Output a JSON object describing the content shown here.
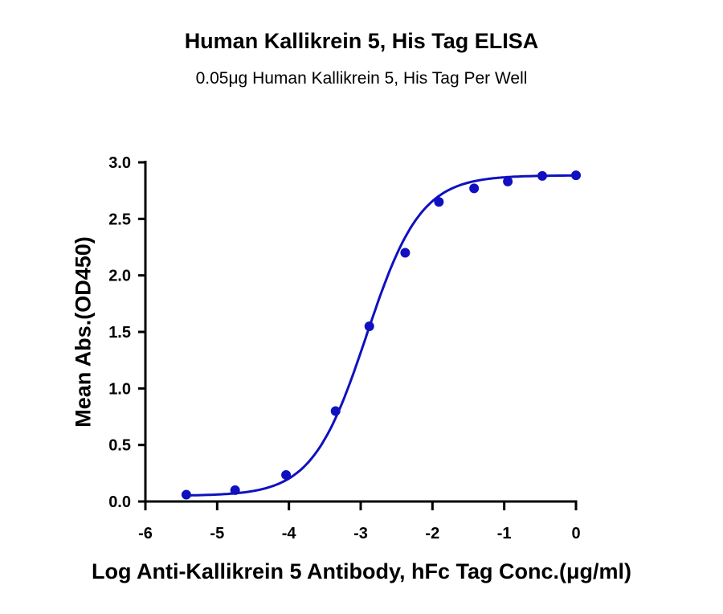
{
  "chart_data": {
    "type": "scatter",
    "title": "Human Kallikrein 5, His Tag ELISA",
    "subtitle": "0.05μg Human Kallikrein 5, His Tag Per Well",
    "xlabel": "Log Anti-Kallikrein 5 Antibody, hFc Tag Conc.(μg/ml)",
    "ylabel": "Mean Abs.(OD450)",
    "xlim": [
      -6,
      0
    ],
    "ylim": [
      0,
      3.0
    ],
    "x_ticks": [
      "-6",
      "-5",
      "-4",
      "-3",
      "-2",
      "-1",
      "0"
    ],
    "y_ticks": [
      "0.0",
      "0.5",
      "1.0",
      "1.5",
      "2.0",
      "2.5",
      "3.0"
    ],
    "grid": false,
    "fit_curve": "sigmoidal",
    "series": [
      {
        "color": "#1010c0",
        "x": [
          -5.43,
          -4.75,
          -4.04,
          -3.35,
          -2.88,
          -2.38,
          -1.91,
          -1.42,
          -0.95,
          -0.47,
          0.0
        ],
        "y": [
          0.06,
          0.1,
          0.235,
          0.8,
          1.55,
          2.2,
          2.65,
          2.77,
          2.83,
          2.88,
          2.885
        ]
      }
    ]
  }
}
